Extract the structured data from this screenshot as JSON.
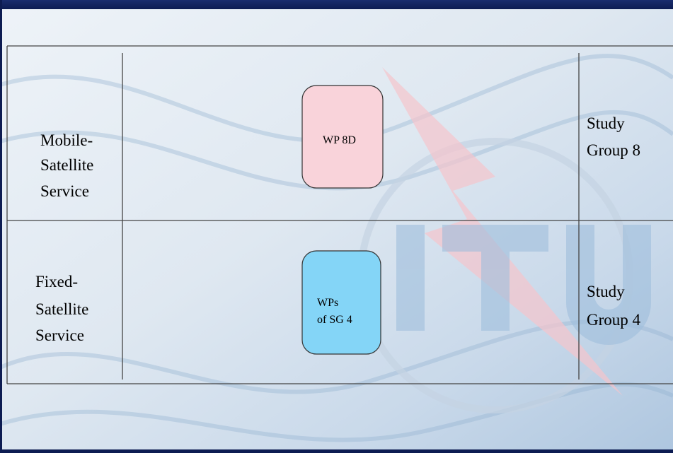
{
  "rows": [
    {
      "service": [
        "Mobile-",
        "Satellite",
        "Service"
      ],
      "working_party": [
        "WP 8D"
      ],
      "study_group": [
        "Study",
        "Group 8"
      ]
    },
    {
      "service": [
        "Fixed-",
        "Satellite",
        "Service"
      ],
      "working_party": [
        "WPs",
        "of SG 4"
      ],
      "study_group": [
        "Study",
        "Group 4"
      ]
    }
  ]
}
